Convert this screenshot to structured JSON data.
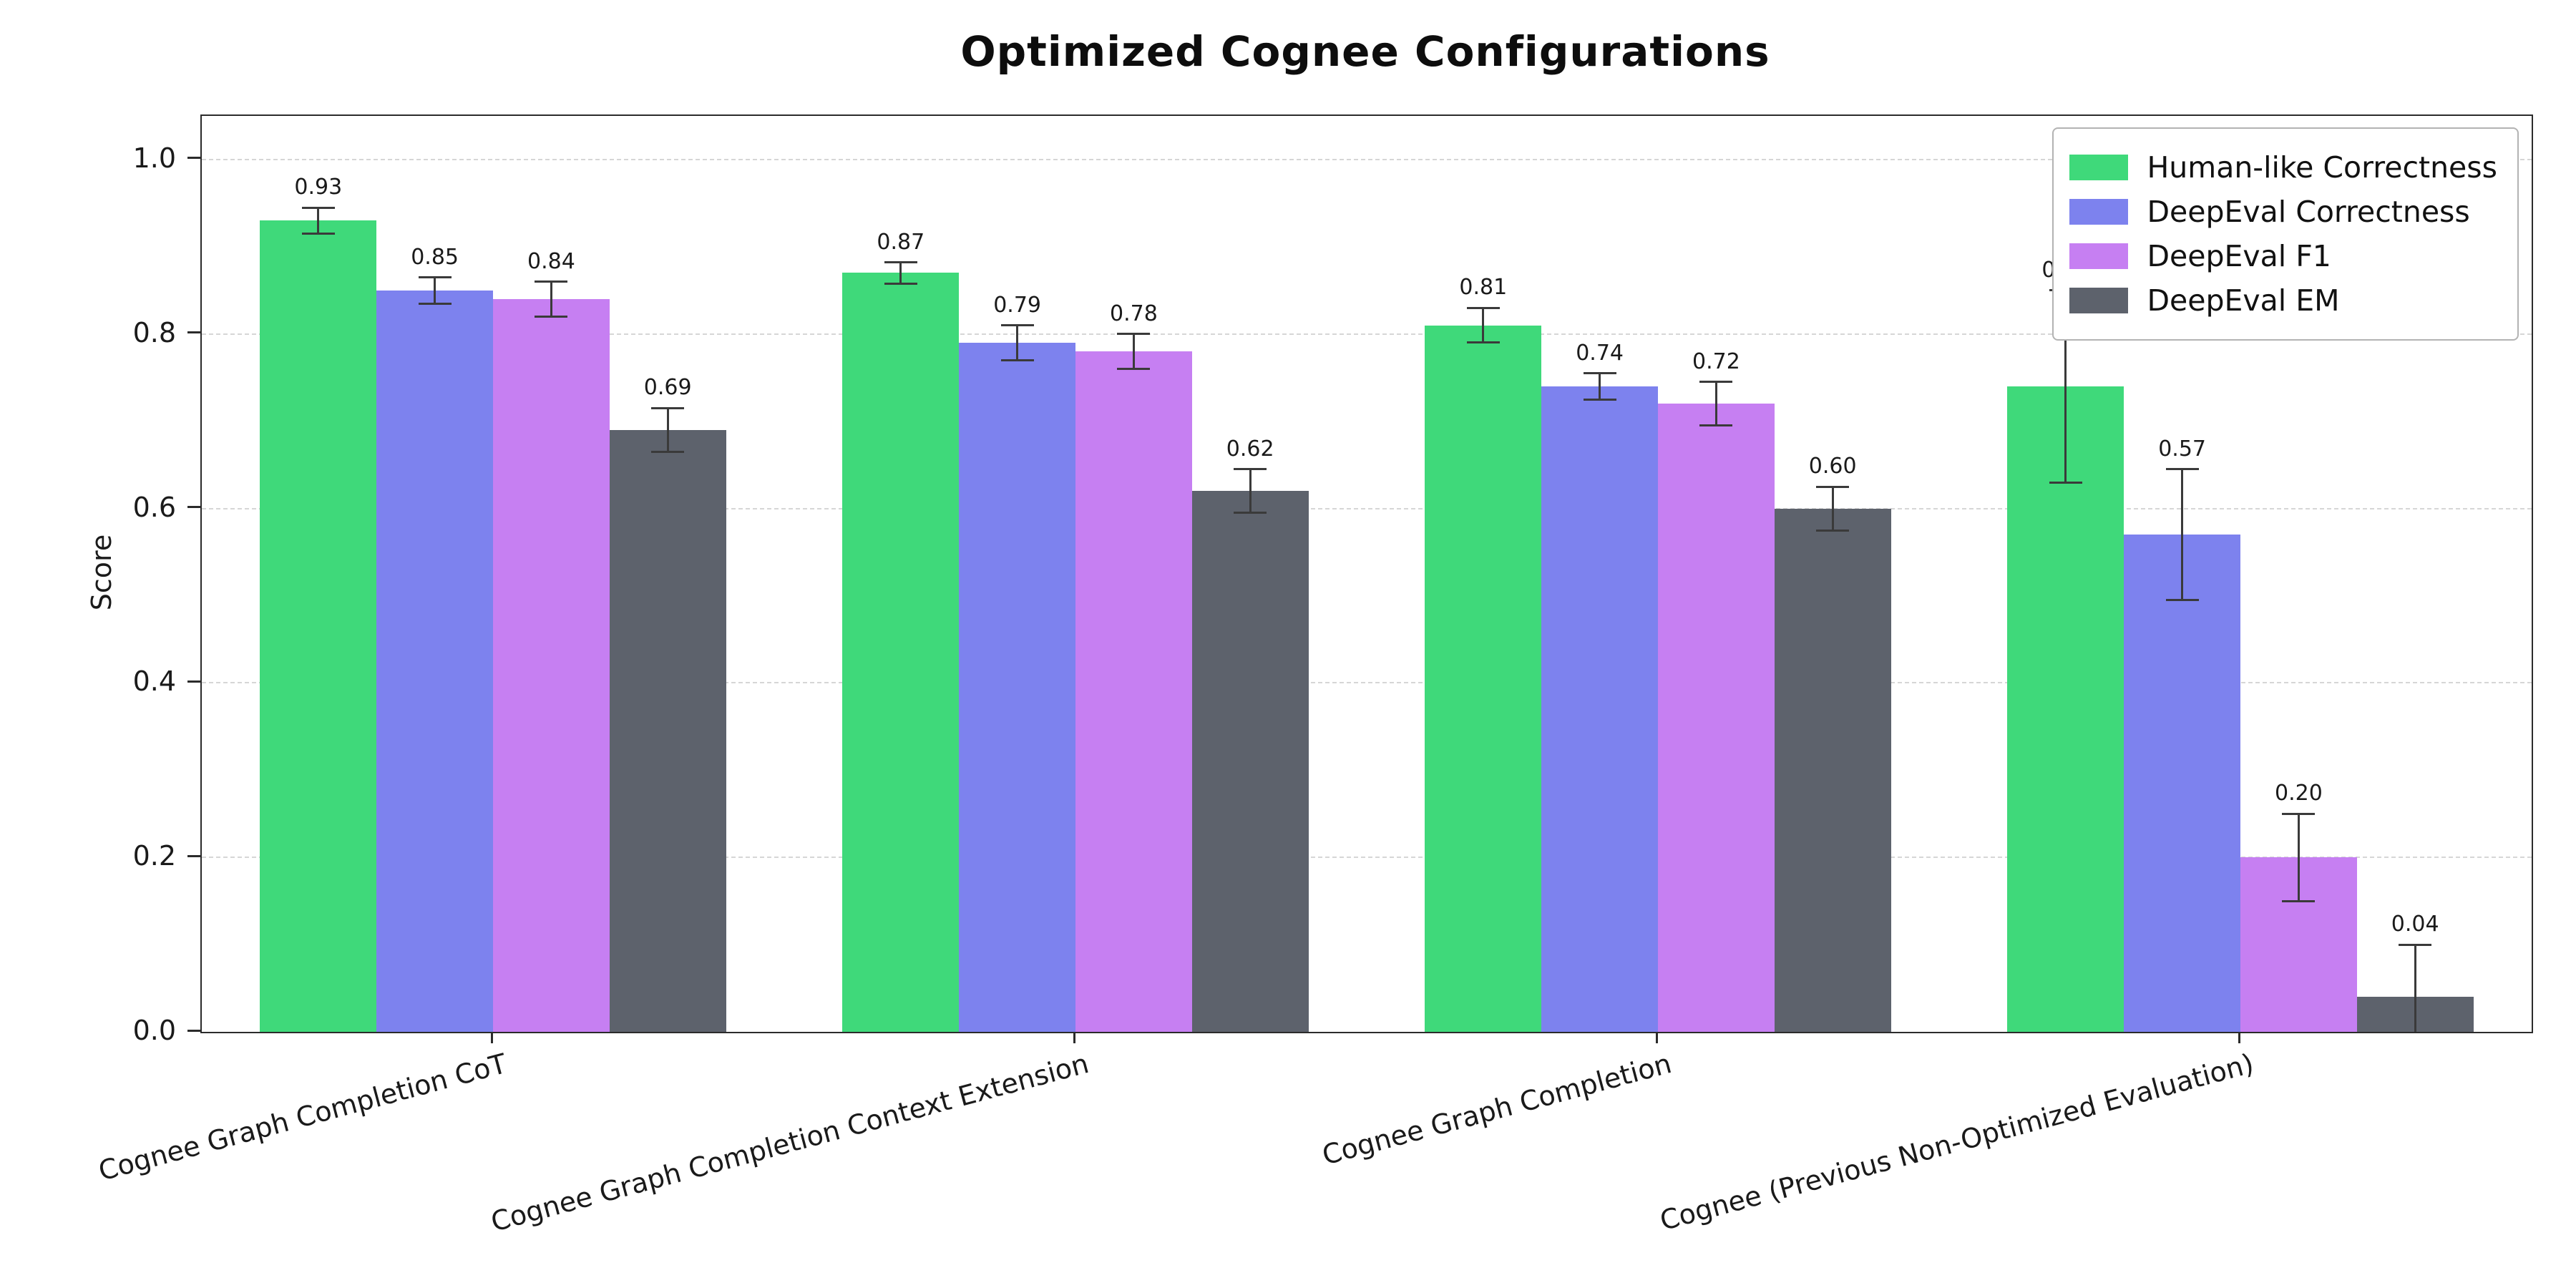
{
  "chart_data": {
    "type": "bar",
    "title": "Optimized Cognee Configurations",
    "xlabel": "",
    "ylabel": "Score",
    "ylim": [
      0,
      1.05
    ],
    "yticks": [
      0.0,
      0.2,
      0.4,
      0.6,
      0.8,
      1.0
    ],
    "grid": "dashed-horizontal",
    "legend_position": "upper-right",
    "categories": [
      "Cognee Graph Completion CoT",
      "Cognee Graph Completion Context Extension",
      "Cognee Graph Completion",
      "Cognee (Previous Non-Optimized Evaluation)"
    ],
    "series": [
      {
        "name": "Human-like Correctness",
        "color": "#3fd97a",
        "values": [
          0.93,
          0.87,
          0.81,
          0.74
        ],
        "errors": [
          0.015,
          0.012,
          0.02,
          0.11
        ]
      },
      {
        "name": "DeepEval Correctness",
        "color": "#7d82ee",
        "values": [
          0.85,
          0.79,
          0.74,
          0.57
        ],
        "errors": [
          0.015,
          0.02,
          0.015,
          0.075
        ]
      },
      {
        "name": "DeepEval F1",
        "color": "#c67ff2",
        "values": [
          0.84,
          0.78,
          0.72,
          0.2
        ],
        "errors": [
          0.02,
          0.02,
          0.025,
          0.05
        ]
      },
      {
        "name": "DeepEval EM",
        "color": "#5d626c",
        "values": [
          0.69,
          0.62,
          0.6,
          0.04
        ],
        "errors": [
          0.025,
          0.025,
          0.025,
          0.06
        ]
      }
    ]
  }
}
